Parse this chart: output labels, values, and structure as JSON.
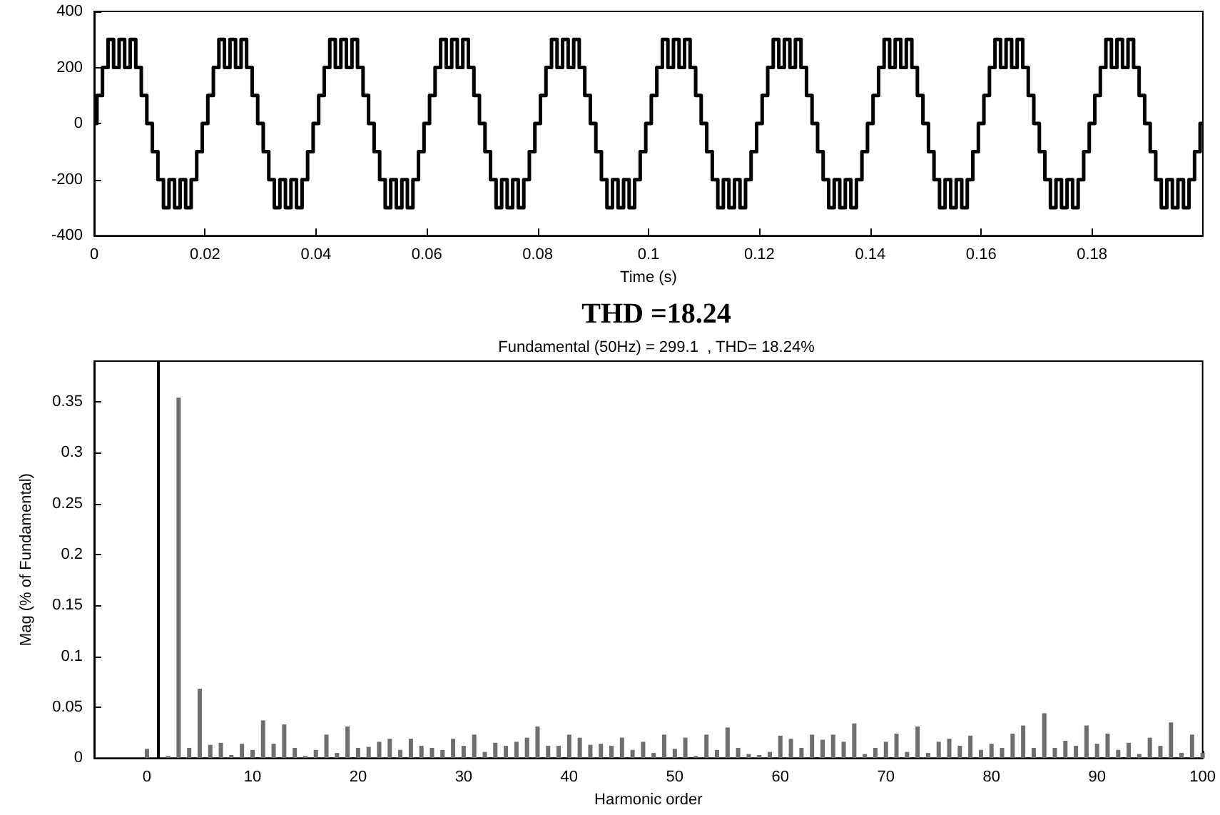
{
  "chart_data": [
    {
      "type": "step",
      "xlabel": "Time (s)",
      "xlim": [
        0,
        0.2
      ],
      "ylim": [
        -400,
        400
      ],
      "xticks": [
        0,
        0.02,
        0.04,
        0.06,
        0.08,
        0.1,
        0.12,
        0.14,
        0.16,
        0.18
      ],
      "yticks": [
        -400,
        -200,
        0,
        200,
        400
      ],
      "grid": false,
      "color": "#000000",
      "x": [
        0,
        0.0005,
        0.0015,
        0.0025,
        0.0035,
        0.0045,
        0.0055,
        0.0065,
        0.0075,
        0.0085,
        0.0095,
        0.0105,
        0.0115,
        0.0125,
        0.0135,
        0.0145,
        0.0155,
        0.0165,
        0.0175,
        0.0185,
        0.0195,
        0.02,
        0.0205,
        0.0215,
        0.0225,
        0.0235,
        0.0245,
        0.0255,
        0.0265,
        0.0275,
        0.0285,
        0.0295,
        0.0305,
        0.0315,
        0.0325,
        0.0335,
        0.0345,
        0.0355,
        0.0365,
        0.0375,
        0.0385,
        0.0395,
        0.04,
        0.0405,
        0.0415,
        0.0425,
        0.0435,
        0.0445,
        0.0455,
        0.0465,
        0.0475,
        0.0485,
        0.0495,
        0.0505,
        0.0515,
        0.0525,
        0.0535,
        0.0545,
        0.0555,
        0.0565,
        0.0575,
        0.0585,
        0.0595,
        0.06,
        0.0605,
        0.0615,
        0.0625,
        0.0635,
        0.0645,
        0.0655,
        0.0665,
        0.0675,
        0.0685,
        0.0695,
        0.0705,
        0.0715,
        0.0725,
        0.0735,
        0.0745,
        0.0755,
        0.0765,
        0.0775,
        0.0785,
        0.0795,
        0.08,
        0.0805,
        0.0815,
        0.0825,
        0.0835,
        0.0845,
        0.0855,
        0.0865,
        0.0875,
        0.0885,
        0.0895,
        0.0905,
        0.0915,
        0.0925,
        0.0935,
        0.0945,
        0.0955,
        0.0965,
        0.0975,
        0.0985,
        0.0995,
        0.1,
        0.1005,
        0.1015,
        0.1025,
        0.1035,
        0.1045,
        0.1055,
        0.1065,
        0.1075,
        0.1085,
        0.1095,
        0.1105,
        0.1115,
        0.1125,
        0.1135,
        0.1145,
        0.1155,
        0.1165,
        0.1175,
        0.1185,
        0.1195,
        0.12,
        0.1205,
        0.1215,
        0.1225,
        0.1235,
        0.1245,
        0.1255,
        0.1265,
        0.1275,
        0.1285,
        0.1295,
        0.1305,
        0.1315,
        0.1325,
        0.1335,
        0.1345,
        0.1355,
        0.1365,
        0.1375,
        0.1385,
        0.1395,
        0.14,
        0.1405,
        0.1415,
        0.1425,
        0.1435,
        0.1445,
        0.1455,
        0.1465,
        0.1475,
        0.1485,
        0.1495,
        0.1505,
        0.1515,
        0.1525,
        0.1535,
        0.1545,
        0.1555,
        0.1565,
        0.1575,
        0.1585,
        0.1595,
        0.16,
        0.1605,
        0.1615,
        0.1625,
        0.1635,
        0.1645,
        0.1655,
        0.1665,
        0.1675,
        0.1685,
        0.1695,
        0.1705,
        0.1715,
        0.1725,
        0.1735,
        0.1745,
        0.1755,
        0.1765,
        0.1775,
        0.1785,
        0.1795,
        0.18,
        0.1805,
        0.1815,
        0.1825,
        0.1835,
        0.1845,
        0.1855,
        0.1865,
        0.1875,
        0.1885,
        0.1895,
        0.1905,
        0.1915,
        0.1925,
        0.1935,
        0.1945,
        0.1955,
        0.1965,
        0.1975,
        0.1985,
        0.1995,
        0.2
      ],
      "values": [
        0,
        100,
        200,
        300,
        200,
        300,
        200,
        300,
        200,
        100,
        0,
        -100,
        -200,
        -300,
        -200,
        -300,
        -200,
        -300,
        -200,
        -100,
        0,
        0,
        100,
        200,
        300,
        200,
        300,
        200,
        300,
        200,
        100,
        0,
        -100,
        -200,
        -300,
        -200,
        -300,
        -200,
        -300,
        -200,
        -100,
        0,
        0,
        100,
        200,
        300,
        200,
        300,
        200,
        300,
        200,
        100,
        0,
        -100,
        -200,
        -300,
        -200,
        -300,
        -200,
        -300,
        -200,
        -100,
        0,
        0,
        100,
        200,
        300,
        200,
        300,
        200,
        300,
        200,
        100,
        0,
        -100,
        -200,
        -300,
        -200,
        -300,
        -200,
        -300,
        -200,
        -100,
        0,
        0,
        100,
        200,
        300,
        200,
        300,
        200,
        300,
        200,
        100,
        0,
        -100,
        -200,
        -300,
        -200,
        -300,
        -200,
        -300,
        -200,
        -100,
        0,
        0,
        100,
        200,
        300,
        200,
        300,
        200,
        300,
        200,
        100,
        0,
        -100,
        -200,
        -300,
        -200,
        -300,
        -200,
        -300,
        -200,
        -100,
        0,
        0,
        100,
        200,
        300,
        200,
        300,
        200,
        300,
        200,
        100,
        0,
        -100,
        -200,
        -300,
        -200,
        -300,
        -200,
        -300,
        -200,
        -100,
        0,
        0,
        100,
        200,
        300,
        200,
        300,
        200,
        300,
        200,
        100,
        0,
        -100,
        -200,
        -300,
        -200,
        -300,
        -200,
        -300,
        -200,
        -100,
        0,
        0,
        100,
        200,
        300,
        200,
        300,
        200,
        300,
        200,
        100,
        0,
        -100,
        -200,
        -300,
        -200,
        -300,
        -200,
        -300,
        -200,
        -100,
        0,
        0,
        100,
        200,
        300,
        200,
        300,
        200,
        300,
        200,
        100,
        0,
        -100,
        -200,
        -300,
        -200,
        -300,
        -200,
        -300,
        -200,
        -100,
        0,
        0
      ]
    },
    {
      "type": "bar",
      "title": "THD =18.24",
      "subtitle": "Fundamental (50Hz) = 299.1  , THD= 18.24%",
      "xlabel": "Harmonic order",
      "ylabel": "Mag (% of Fundamental)",
      "xlim": [
        -5,
        100
      ],
      "ylim": [
        0,
        0.39
      ],
      "xticks": [
        0,
        10,
        20,
        30,
        40,
        50,
        60,
        70,
        80,
        90,
        100
      ],
      "yticks": [
        0,
        0.05,
        0.1,
        0.15,
        0.2,
        0.25,
        0.3,
        0.35
      ],
      "grid": false,
      "color": "#6e6e6e",
      "ref_lines": [
        {
          "axis": "x",
          "value": 1,
          "color": "#000000"
        }
      ],
      "x": [
        0,
        1,
        2,
        3,
        4,
        5,
        6,
        7,
        8,
        9,
        10,
        11,
        12,
        13,
        14,
        15,
        16,
        17,
        18,
        19,
        20,
        21,
        22,
        23,
        24,
        25,
        26,
        27,
        28,
        29,
        30,
        31,
        32,
        33,
        34,
        35,
        36,
        37,
        38,
        39,
        40,
        41,
        42,
        43,
        44,
        45,
        46,
        47,
        48,
        49,
        50,
        51,
        52,
        53,
        54,
        55,
        56,
        57,
        58,
        59,
        60,
        61,
        62,
        63,
        64,
        65,
        66,
        67,
        68,
        69,
        70,
        71,
        72,
        73,
        74,
        75,
        76,
        77,
        78,
        79,
        80,
        81,
        82,
        83,
        84,
        85,
        86,
        87,
        88,
        89,
        90,
        91,
        92,
        93,
        94,
        95,
        96,
        97,
        98,
        99,
        100
      ],
      "values": [
        0.009,
        null,
        0.002,
        0.354,
        0.01,
        0.068,
        0.013,
        0.015,
        0.003,
        0.014,
        0.008,
        0.037,
        0.014,
        0.033,
        0.01,
        0.002,
        0.008,
        0.023,
        0.005,
        0.031,
        0.01,
        0.011,
        0.016,
        0.019,
        0.008,
        0.019,
        0.012,
        0.01,
        0.008,
        0.019,
        0.012,
        0.023,
        0.006,
        0.015,
        0.012,
        0.016,
        0.02,
        0.031,
        0.012,
        0.012,
        0.023,
        0.02,
        0.013,
        0.014,
        0.012,
        0.02,
        0.008,
        0.016,
        0.005,
        0.023,
        0.009,
        0.02,
        0.002,
        0.023,
        0.008,
        0.03,
        0.01,
        0.004,
        0.003,
        0.006,
        0.022,
        0.019,
        0.01,
        0.023,
        0.018,
        0.023,
        0.016,
        0.034,
        0.004,
        0.01,
        0.016,
        0.024,
        0.006,
        0.031,
        0.005,
        0.016,
        0.019,
        0.012,
        0.022,
        0.008,
        0.014,
        0.01,
        0.024,
        0.032,
        0.01,
        0.044,
        0.01,
        0.017,
        0.012,
        0.032,
        0.014,
        0.024,
        0.008,
        0.015,
        0.004,
        0.02,
        0.012,
        0.035,
        0.005,
        0.023,
        0.005
      ]
    }
  ]
}
